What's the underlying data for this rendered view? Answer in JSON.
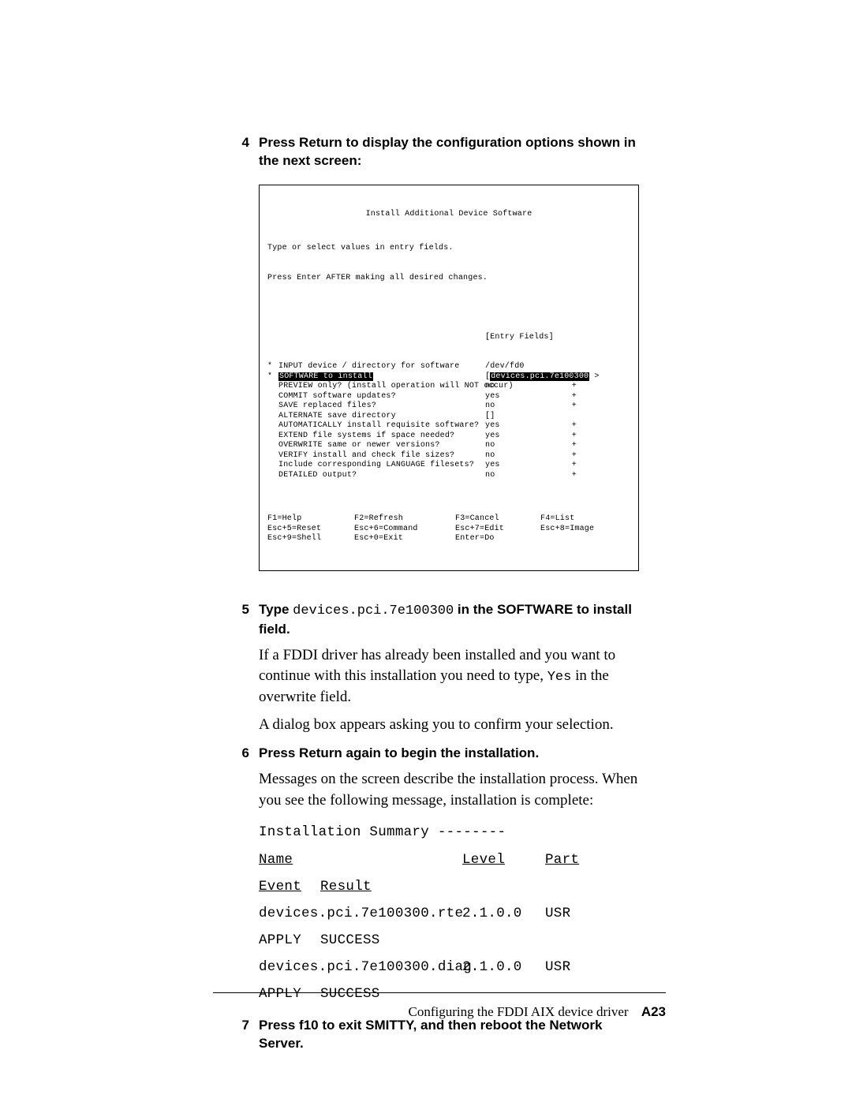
{
  "steps": {
    "s4": {
      "num": "4",
      "text": "Press Return to display the configuration options shown in the next screen:"
    },
    "s5": {
      "num": "5",
      "text_a": "Type ",
      "code": "devices.pci.7e100300",
      "text_b": " in the SOFTWARE to install field."
    },
    "s5_body1": "If a FDDI driver has already been installed and you want to continue with this installation you need to type, ",
    "s5_body1_code": "Yes",
    "s5_body1_tail": " in the overwrite field.",
    "s5_body2": "A dialog box appears asking you to confirm your selection.",
    "s6": {
      "num": "6",
      "text": "Press Return again to begin the installation."
    },
    "s6_body": "Messages on the screen describe the installation process. When you see the following message, installation is complete:",
    "s7": {
      "num": "7",
      "text": "Press f10 to exit SMITTY,  and then reboot the Network Server."
    }
  },
  "terminal": {
    "title": "Install Additional Device Software",
    "pre1": "Type or select values in entry fields.",
    "pre2": "Press Enter AFTER making all desired changes.",
    "entry_fields_label": "[Entry Fields]",
    "rows": [
      {
        "mark": "*",
        "label": "INPUT device / directory for software",
        "value": "/dev/fd0",
        "tail": ""
      },
      {
        "mark": "*",
        "label_inv": "SOFTWARE to install",
        "value_pre": "[",
        "value_inv": "devices.pci.7e100300",
        "value_post": " >",
        "tail": "+"
      },
      {
        "mark": "",
        "label": "PREVIEW only? (install operation will NOT occur)",
        "value": "no",
        "tail": "+"
      },
      {
        "mark": "",
        "label": "COMMIT software updates?",
        "value": "yes",
        "tail": "+"
      },
      {
        "mark": "",
        "label": "SAVE replaced files?",
        "value": "no",
        "tail": "+"
      },
      {
        "mark": "",
        "label": "ALTERNATE save directory",
        "value": "[]",
        "tail": ""
      },
      {
        "mark": "",
        "label": "AUTOMATICALLY install requisite software?",
        "value": "yes",
        "tail": "+"
      },
      {
        "mark": "",
        "label": "EXTEND file systems if space needed?",
        "value": "yes",
        "tail": "+"
      },
      {
        "mark": "",
        "label": "OVERWRITE same or newer versions?",
        "value": "no",
        "tail": "+"
      },
      {
        "mark": "",
        "label": "VERIFY install and check file sizes?",
        "value": "no",
        "tail": "+"
      },
      {
        "mark": "",
        "label": "Include corresponding LANGUAGE filesets?",
        "value": "yes",
        "tail": "+"
      },
      {
        "mark": "",
        "label": "DETAILED output?",
        "value": "no",
        "tail": "+"
      }
    ],
    "keys": [
      [
        "F1=Help",
        "F2=Refresh",
        "F3=Cancel",
        "F4=List"
      ],
      [
        "Esc+5=Reset",
        "Esc+6=Command",
        "Esc+7=Edit",
        "Esc+8=Image"
      ],
      [
        "Esc+9=Shell",
        "Esc+0=Exit",
        "Enter=Do",
        ""
      ]
    ]
  },
  "summary": {
    "title": "Installation Summary --------",
    "columns": [
      "Name",
      "Level",
      "Part",
      "Event",
      "Result"
    ],
    "rows": [
      [
        "devices.pci.7e100300.rte",
        "2.1.0.0",
        "USR",
        "APPLY",
        "SUCCESS"
      ],
      [
        "devices.pci.7e100300.diag",
        "2.1.0.0",
        "USR",
        "APPLY",
        "SUCCESS"
      ]
    ]
  },
  "footer": {
    "text": "Configuring the FDDI AIX device driver",
    "page": "A23"
  }
}
